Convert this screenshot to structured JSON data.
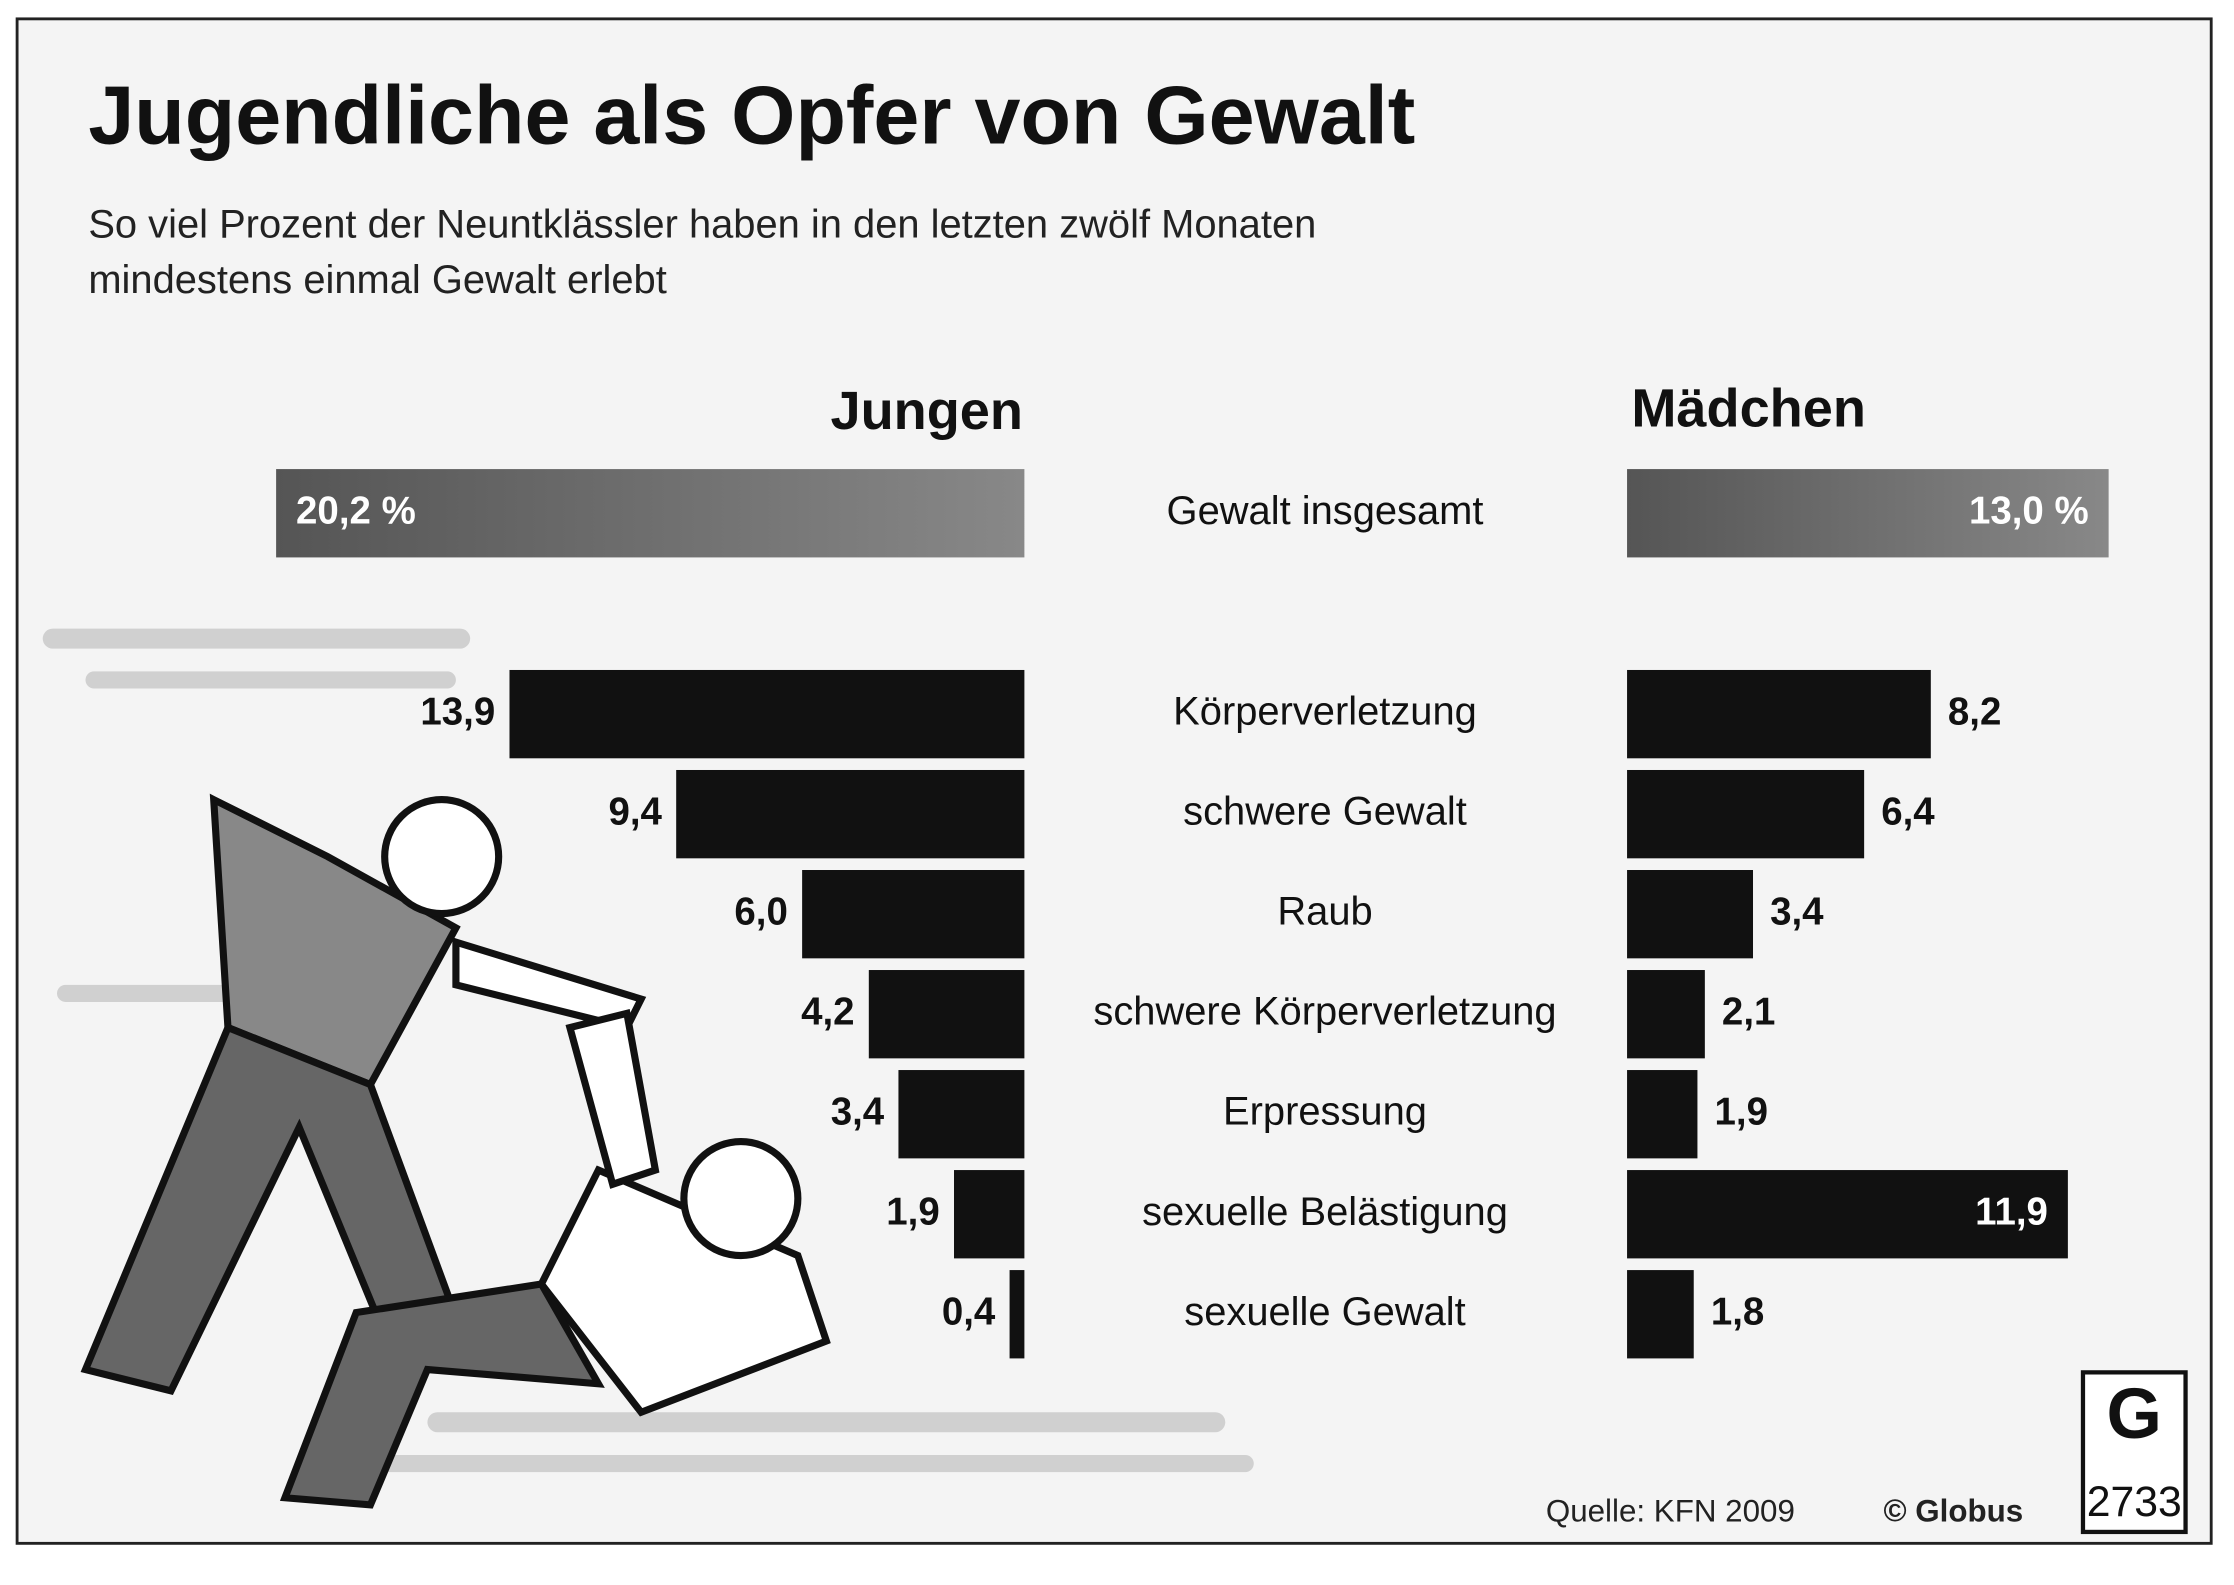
{
  "chart_data": {
    "type": "butterfly-bar",
    "title": "Jugendliche als Opfer von Gewalt",
    "subtitle": [
      "So viel Prozent der Neuntklässler haben in den letzten zwölf Monaten",
      "mindestens einmal Gewalt erlebt"
    ],
    "categories": [
      "Gewalt insgesamt",
      "Körperverletzung",
      "schwere Gewalt",
      "Raub",
      "schwere Körperverletzung",
      "Erpressung",
      "sexuelle Belästigung",
      "sexuelle Gewalt"
    ],
    "series": [
      {
        "name": "Jungen",
        "color": "#111111",
        "values": [
          20.2,
          13.9,
          9.4,
          6.0,
          4.2,
          3.4,
          1.9,
          0.4
        ],
        "value_labels": [
          "20,2 %",
          "13,9",
          "9,4",
          "6,0",
          "4,2",
          "3,4",
          "1,9",
          "0,4"
        ]
      },
      {
        "name": "Mädchen",
        "color": "#111111",
        "values": [
          13.0,
          8.2,
          6.4,
          3.4,
          2.1,
          1.9,
          11.9,
          1.8
        ],
        "value_labels": [
          "13,0 %",
          "8,2",
          "6,4",
          "3,4",
          "2,1",
          "1,9",
          "11,9",
          "1,8"
        ]
      }
    ],
    "total_color": "#6a6a6a",
    "source": "Quelle: KFN 2009",
    "credit": "© Globus",
    "logo_number": "2733"
  }
}
